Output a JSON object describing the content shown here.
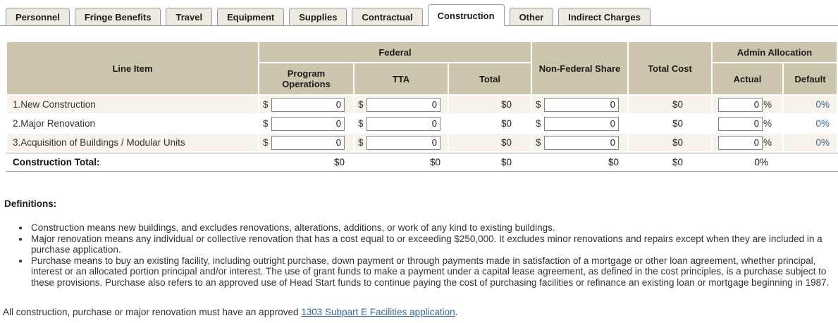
{
  "tabs": [
    {
      "label": "Personnel",
      "active": false
    },
    {
      "label": "Fringe Benefits",
      "active": false
    },
    {
      "label": "Travel",
      "active": false
    },
    {
      "label": "Equipment",
      "active": false
    },
    {
      "label": "Supplies",
      "active": false
    },
    {
      "label": "Contractual",
      "active": false
    },
    {
      "label": "Construction",
      "active": true
    },
    {
      "label": "Other",
      "active": false
    },
    {
      "label": "Indirect Charges",
      "active": false
    }
  ],
  "symbols": {
    "dollar": "$",
    "percent": "%"
  },
  "table": {
    "headers": {
      "line_item": "Line Item",
      "federal": "Federal",
      "program_operations": "Program Operations",
      "tta": "TTA",
      "total": "Total",
      "non_federal_share": "Non-Federal Share",
      "total_cost": "Total Cost",
      "admin_allocation": "Admin Allocation",
      "actual": "Actual",
      "default_col": "Default"
    },
    "rows": [
      {
        "label": "1.New Construction",
        "program_operations": "0",
        "tta": "0",
        "total": "$0",
        "non_federal_share": "0",
        "total_cost": "$0",
        "actual": "0",
        "default_pct": "0%"
      },
      {
        "label": "2.Major Renovation",
        "program_operations": "0",
        "tta": "0",
        "total": "$0",
        "non_federal_share": "0",
        "total_cost": "$0",
        "actual": "0",
        "default_pct": "0%"
      },
      {
        "label": "3.Acquisition of Buildings / Modular Units",
        "program_operations": "0",
        "tta": "0",
        "total": "$0",
        "non_federal_share": "0",
        "total_cost": "$0",
        "actual": "0",
        "default_pct": "0%"
      }
    ],
    "totals": {
      "label": "Construction Total:",
      "program_operations": "$0",
      "tta": "$0",
      "total": "$0",
      "non_federal_share": "$0",
      "total_cost": "$0",
      "actual": "0%",
      "default_pct": ""
    }
  },
  "definitions": {
    "heading": "Definitions:",
    "items": [
      "Construction means new buildings, and excludes renovations, alterations, additions, or work of any kind to existing buildings.",
      "Major renovation means any individual or collective renovation that has a cost equal to or exceeding $250,000. It excludes minor renovations and repairs except when they are included in a purchase application.",
      "Purchase means to buy an existing facility, including outright purchase, down payment or through payments made in satisfaction of a mortgage or other loan agreement, whether principal, interest or an allocated portion principal and/or interest. The use of grant funds to make a payment under a capital lease agreement, as defined in the cost principles, is a purchase subject to these provisions. Purchase also refers to an approved use of Head Start funds to continue paying the cost of purchasing facilities or refinance an existing loan or mortgage beginning in 1987."
    ]
  },
  "footer": {
    "before_link": "All construction, purchase or major renovation must have an approved ",
    "link": "1303 Subpart E Facilities application",
    "after_link": "."
  },
  "colors": {
    "header_bg": "#cdc4ae",
    "alt_row_bg": "#f7f3ea",
    "tab_bg": "#eeeae1",
    "link_blue": "#336699"
  }
}
